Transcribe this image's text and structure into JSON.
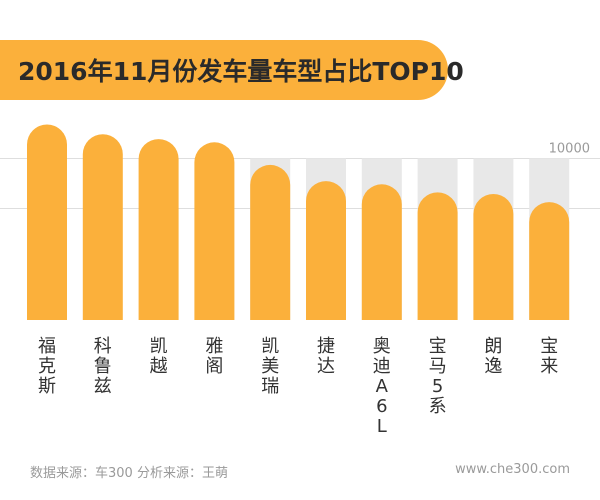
{
  "colors": {
    "bar": "#fbb03b",
    "banner": "#fbb03b",
    "track": "#e8e8e8",
    "grid": "#dedede",
    "text": "#333333",
    "muted": "#9a9a9a"
  },
  "chart_data": {
    "type": "bar",
    "title": "2016年11月份发车量车型占比TOP10",
    "categories": [
      "福克斯",
      "科鲁兹",
      "凯越",
      "雅阁",
      "凯美瑞",
      "捷达",
      "奥迪A6L",
      "宝马5系",
      "朗逸",
      "宝来"
    ],
    "values": [
      12100,
      11500,
      11200,
      11000,
      9600,
      8600,
      8400,
      7900,
      7800,
      7300
    ],
    "ytick_labels": [
      "10000"
    ],
    "ylim": [
      0,
      13000
    ],
    "grid": true,
    "legend": "none"
  },
  "footer": {
    "source": "数据来源：车300 分析来源：王萌",
    "site": "www.che300.com"
  }
}
